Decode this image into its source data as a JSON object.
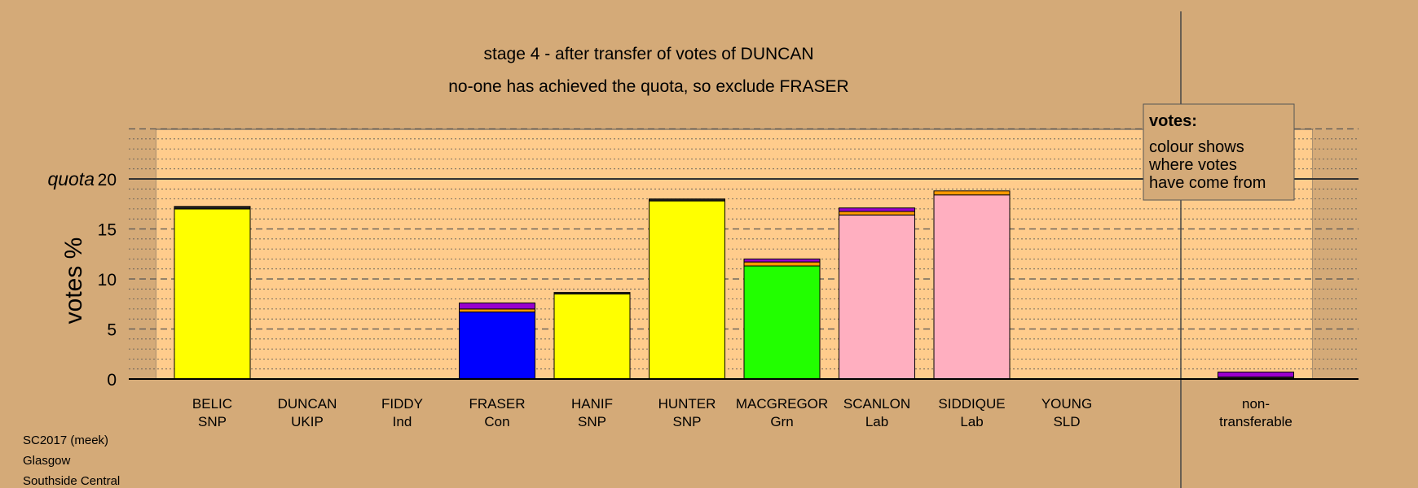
{
  "chart_data": {
    "type": "bar",
    "title": "stage 4 - after transfer of votes of DUNCAN",
    "subtitle": "no-one has achieved the quota, so exclude FRASER",
    "ylabel": "votes %",
    "ylim": [
      0,
      25
    ],
    "yticks": [
      0,
      5,
      10,
      15,
      20
    ],
    "quota": {
      "label": "quota",
      "value": 20
    },
    "colors": {
      "SNP": "#ffff00",
      "Con": "#0000ff",
      "Grn": "#22ff00",
      "Lab": "#ffafc0",
      "UKIP": "#9900cc",
      "Ind": "#ff9900",
      "SLD": "#ffa500",
      "other": "#222222"
    },
    "candidates": [
      {
        "name": "BELIC",
        "party": "SNP",
        "segments": [
          {
            "source": "SNP",
            "value": 17.0
          },
          {
            "source": "other",
            "value": 0.25
          }
        ]
      },
      {
        "name": "DUNCAN",
        "party": "UKIP",
        "segments": []
      },
      {
        "name": "FIDDY",
        "party": "Ind",
        "segments": []
      },
      {
        "name": "FRASER",
        "party": "Con",
        "segments": [
          {
            "source": "Con",
            "value": 6.7
          },
          {
            "source": "Ind",
            "value": 0.3
          },
          {
            "source": "UKIP",
            "value": 0.6
          }
        ]
      },
      {
        "name": "HANIF",
        "party": "SNP",
        "segments": [
          {
            "source": "SNP",
            "value": 8.5
          },
          {
            "source": "other",
            "value": 0.15
          }
        ]
      },
      {
        "name": "HUNTER",
        "party": "SNP",
        "segments": [
          {
            "source": "SNP",
            "value": 17.8
          },
          {
            "source": "other",
            "value": 0.2
          }
        ]
      },
      {
        "name": "MACGREGOR",
        "party": "Grn",
        "segments": [
          {
            "source": "Grn",
            "value": 11.3
          },
          {
            "source": "Ind",
            "value": 0.4
          },
          {
            "source": "UKIP",
            "value": 0.3
          }
        ]
      },
      {
        "name": "SCANLON",
        "party": "Lab",
        "segments": [
          {
            "source": "Lab",
            "value": 16.4
          },
          {
            "source": "Ind",
            "value": 0.35
          },
          {
            "source": "UKIP",
            "value": 0.35
          }
        ]
      },
      {
        "name": "SIDDIQUE",
        "party": "Lab",
        "segments": [
          {
            "source": "Lab",
            "value": 18.4
          },
          {
            "source": "Ind",
            "value": 0.4
          }
        ]
      },
      {
        "name": "YOUNG",
        "party": "SLD",
        "segments": []
      }
    ],
    "nontransferable": {
      "label_lines": [
        "non-",
        "transferable"
      ],
      "segments": [
        {
          "source": "other",
          "value": 0.2
        },
        {
          "source": "UKIP",
          "value": 0.5
        }
      ]
    },
    "legend": {
      "heading": "votes:",
      "lines": [
        "colour shows",
        "where votes",
        "have come from"
      ],
      "placement": "top-right"
    }
  },
  "footer": [
    "SC2017 (meek)",
    "Glasgow",
    "Southside Central"
  ]
}
